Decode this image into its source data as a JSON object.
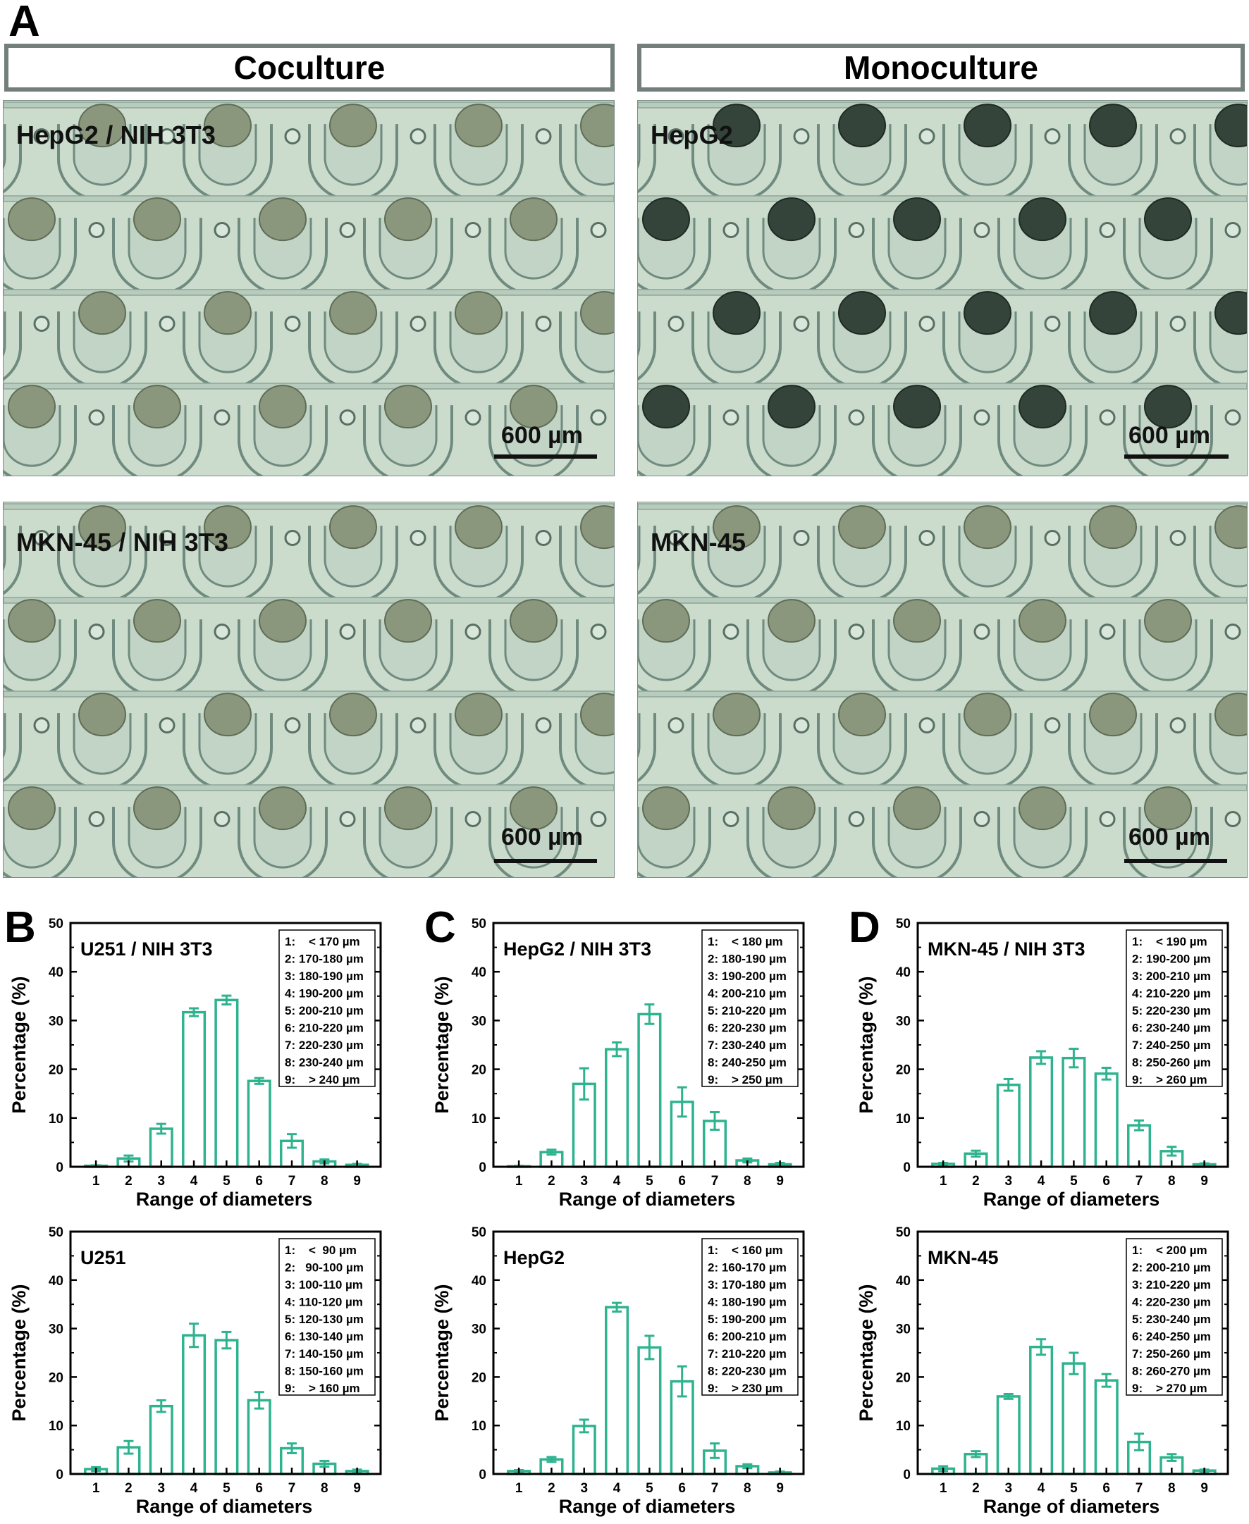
{
  "figure": {
    "panel_a_letter": "A",
    "headers": {
      "coculture": "Coculture",
      "monoculture": "Monoculture"
    },
    "micrographs": [
      {
        "label": "HepG2 / NIH 3T3",
        "scale_text": "600 µm",
        "spheroid_tone": "light"
      },
      {
        "label": "HepG2",
        "scale_text": "600 µm",
        "spheroid_tone": "dark"
      },
      {
        "label": "MKN-45 / NIH 3T3",
        "scale_text": "600 µm",
        "spheroid_tone": "light"
      },
      {
        "label": "MKN-45",
        "scale_text": "600 µm",
        "spheroid_tone": "light"
      }
    ],
    "panel_letters": [
      "B",
      "C",
      "D"
    ]
  },
  "chart_data": [
    {
      "type": "bar",
      "title": "U251 / NIH 3T3",
      "xlabel": "Range of diameters",
      "ylabel": "Percentage (%)",
      "categories": [
        "1",
        "2",
        "3",
        "4",
        "5",
        "6",
        "7",
        "8",
        "9"
      ],
      "values": [
        0.2,
        1.7,
        7.8,
        31.7,
        34.2,
        17.6,
        5.3,
        1.1,
        0.4
      ],
      "errors": [
        0.1,
        0.6,
        1.0,
        0.8,
        0.9,
        0.6,
        1.4,
        0.4,
        0.2
      ],
      "ylim": [
        0,
        50
      ],
      "yticks": [
        0,
        10,
        20,
        30,
        40,
        50
      ],
      "legend": [
        "1:    < 170 µm",
        "2: 170-180 µm",
        "3: 180-190 µm",
        "4: 190-200 µm",
        "5: 200-210 µm",
        "6: 210-220 µm",
        "7: 220-230 µm",
        "8: 230-240 µm",
        "9:    > 240 µm"
      ]
    },
    {
      "type": "bar",
      "title": "HepG2 / NIH 3T3",
      "xlabel": "Range of diameters",
      "ylabel": "Percentage (%)",
      "categories": [
        "1",
        "2",
        "3",
        "4",
        "5",
        "6",
        "7",
        "8",
        "9"
      ],
      "values": [
        0.1,
        3.0,
        17.0,
        24.1,
        31.3,
        13.3,
        9.4,
        1.3,
        0.5
      ],
      "errors": [
        0.1,
        0.5,
        3.2,
        1.4,
        2.0,
        3.0,
        1.8,
        0.4,
        0.3
      ],
      "ylim": [
        0,
        50
      ],
      "yticks": [
        0,
        10,
        20,
        30,
        40,
        50
      ],
      "legend": [
        "1:    < 180 µm",
        "2: 180-190 µm",
        "3: 190-200 µm",
        "4: 200-210 µm",
        "5: 210-220 µm",
        "6: 220-230 µm",
        "7: 230-240 µm",
        "8: 240-250 µm",
        "9:    > 250 µm"
      ]
    },
    {
      "type": "bar",
      "title": "MKN-45 / NIH 3T3",
      "xlabel": "Range of diameters",
      "ylabel": "Percentage (%)",
      "categories": [
        "1",
        "2",
        "3",
        "4",
        "5",
        "6",
        "7",
        "8",
        "9"
      ],
      "values": [
        0.6,
        2.7,
        16.8,
        22.4,
        22.3,
        19.1,
        8.5,
        3.2,
        0.5
      ],
      "errors": [
        0.2,
        0.6,
        1.2,
        1.3,
        1.9,
        1.2,
        1.0,
        0.9,
        0.2
      ],
      "ylim": [
        0,
        50
      ],
      "yticks": [
        0,
        10,
        20,
        30,
        40,
        50
      ],
      "legend": [
        "1:    < 190 µm",
        "2: 190-200 µm",
        "3: 200-210 µm",
        "4: 210-220 µm",
        "5: 220-230 µm",
        "6: 230-240 µm",
        "7: 240-250 µm",
        "8: 250-260 µm",
        "9:    > 260 µm"
      ]
    },
    {
      "type": "bar",
      "title": "U251",
      "xlabel": "Range of diameters",
      "ylabel": "Percentage (%)",
      "categories": [
        "1",
        "2",
        "3",
        "4",
        "5",
        "6",
        "7",
        "8",
        "9"
      ],
      "values": [
        1.0,
        5.5,
        14.0,
        28.6,
        27.6,
        15.2,
        5.3,
        2.1,
        0.6
      ],
      "errors": [
        0.4,
        1.3,
        1.2,
        2.4,
        1.7,
        1.7,
        1.0,
        0.6,
        0.3
      ],
      "ylim": [
        0,
        50
      ],
      "yticks": [
        0,
        10,
        20,
        30,
        40,
        50
      ],
      "legend": [
        "1:    <  90 µm",
        "2:   90-100 µm",
        "3: 100-110 µm",
        "4: 110-120 µm",
        "5: 120-130 µm",
        "6: 130-140 µm",
        "7: 140-150 µm",
        "8: 150-160 µm",
        "9:    > 160 µm"
      ]
    },
    {
      "type": "bar",
      "title": "HepG2",
      "xlabel": "Range of diameters",
      "ylabel": "Percentage (%)",
      "categories": [
        "1",
        "2",
        "3",
        "4",
        "5",
        "6",
        "7",
        "8",
        "9"
      ],
      "values": [
        0.6,
        3.0,
        9.9,
        34.4,
        26.1,
        19.1,
        4.8,
        1.6,
        0.3
      ],
      "errors": [
        0.2,
        0.5,
        1.3,
        0.9,
        2.4,
        3.1,
        1.5,
        0.4,
        0.2
      ],
      "ylim": [
        0,
        50
      ],
      "yticks": [
        0,
        10,
        20,
        30,
        40,
        50
      ],
      "legend": [
        "1:    < 160 µm",
        "2: 160-170 µm",
        "3: 170-180 µm",
        "4: 180-190 µm",
        "5: 190-200 µm",
        "6: 200-210 µm",
        "7: 210-220 µm",
        "8: 220-230 µm",
        "9:    > 230 µm"
      ]
    },
    {
      "type": "bar",
      "title": "MKN-45",
      "xlabel": "Range of diameters",
      "ylabel": "Percentage (%)",
      "categories": [
        "1",
        "2",
        "3",
        "4",
        "5",
        "6",
        "7",
        "8",
        "9"
      ],
      "values": [
        1.1,
        4.1,
        16.0,
        26.2,
        22.8,
        19.3,
        6.6,
        3.4,
        0.7
      ],
      "errors": [
        0.5,
        0.6,
        0.5,
        1.6,
        2.2,
        1.3,
        1.7,
        0.7,
        0.2
      ],
      "ylim": [
        0,
        50
      ],
      "yticks": [
        0,
        10,
        20,
        30,
        40,
        50
      ],
      "legend": [
        "1:    < 200 µm",
        "2: 200-210 µm",
        "3: 210-220 µm",
        "4: 220-230 µm",
        "5: 230-240 µm",
        "6: 240-250 µm",
        "7: 250-260 µm",
        "8: 260-270 µm",
        "9:    > 270 µm"
      ]
    }
  ],
  "style": {
    "bar_color": "#2eb38f",
    "micro_bg": "#cbdccd",
    "micro_channel": "#b8ccbd"
  }
}
